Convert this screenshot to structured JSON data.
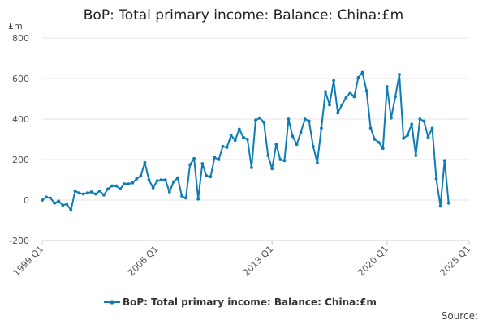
{
  "chart_data": {
    "type": "line",
    "title": "BoP: Total primary income: Balance: China:£m",
    "unit_label": "£m",
    "xlabel": "",
    "ylabel": "",
    "ylim": [
      -200,
      800
    ],
    "y_ticks": [
      "-200",
      "0",
      "200",
      "400",
      "600",
      "800"
    ],
    "x_ticks": [
      "1999 Q1",
      "2006 Q1",
      "2013 Q1",
      "2020 Q1",
      "2025 Q1"
    ],
    "grid": true,
    "legend_position": "bottom",
    "series_color": "#0f7cb5",
    "series": [
      {
        "name": "BoP: Total primary income: Balance: China:£m",
        "x_start": "1999 Q1",
        "frequency": "quarterly",
        "values": [
          0,
          15,
          10,
          -15,
          -5,
          -25,
          -20,
          -50,
          45,
          35,
          30,
          35,
          40,
          30,
          45,
          25,
          55,
          70,
          70,
          55,
          80,
          80,
          85,
          105,
          120,
          185,
          100,
          60,
          95,
          100,
          100,
          40,
          90,
          110,
          20,
          10,
          175,
          205,
          5,
          180,
          120,
          115,
          210,
          200,
          265,
          260,
          320,
          295,
          350,
          310,
          300,
          160,
          395,
          405,
          385,
          220,
          155,
          275,
          200,
          195,
          400,
          315,
          275,
          335,
          400,
          390,
          265,
          185,
          355,
          535,
          470,
          590,
          430,
          470,
          505,
          530,
          510,
          605,
          630,
          540,
          355,
          300,
          285,
          255,
          560,
          405,
          510,
          620,
          305,
          320,
          375,
          220,
          400,
          390,
          310,
          355,
          105,
          -30,
          195,
          -15
        ]
      }
    ]
  },
  "legend": {
    "label": "BoP: Total primary income: Balance: China:£m"
  },
  "footer": {
    "source": "Source:"
  }
}
